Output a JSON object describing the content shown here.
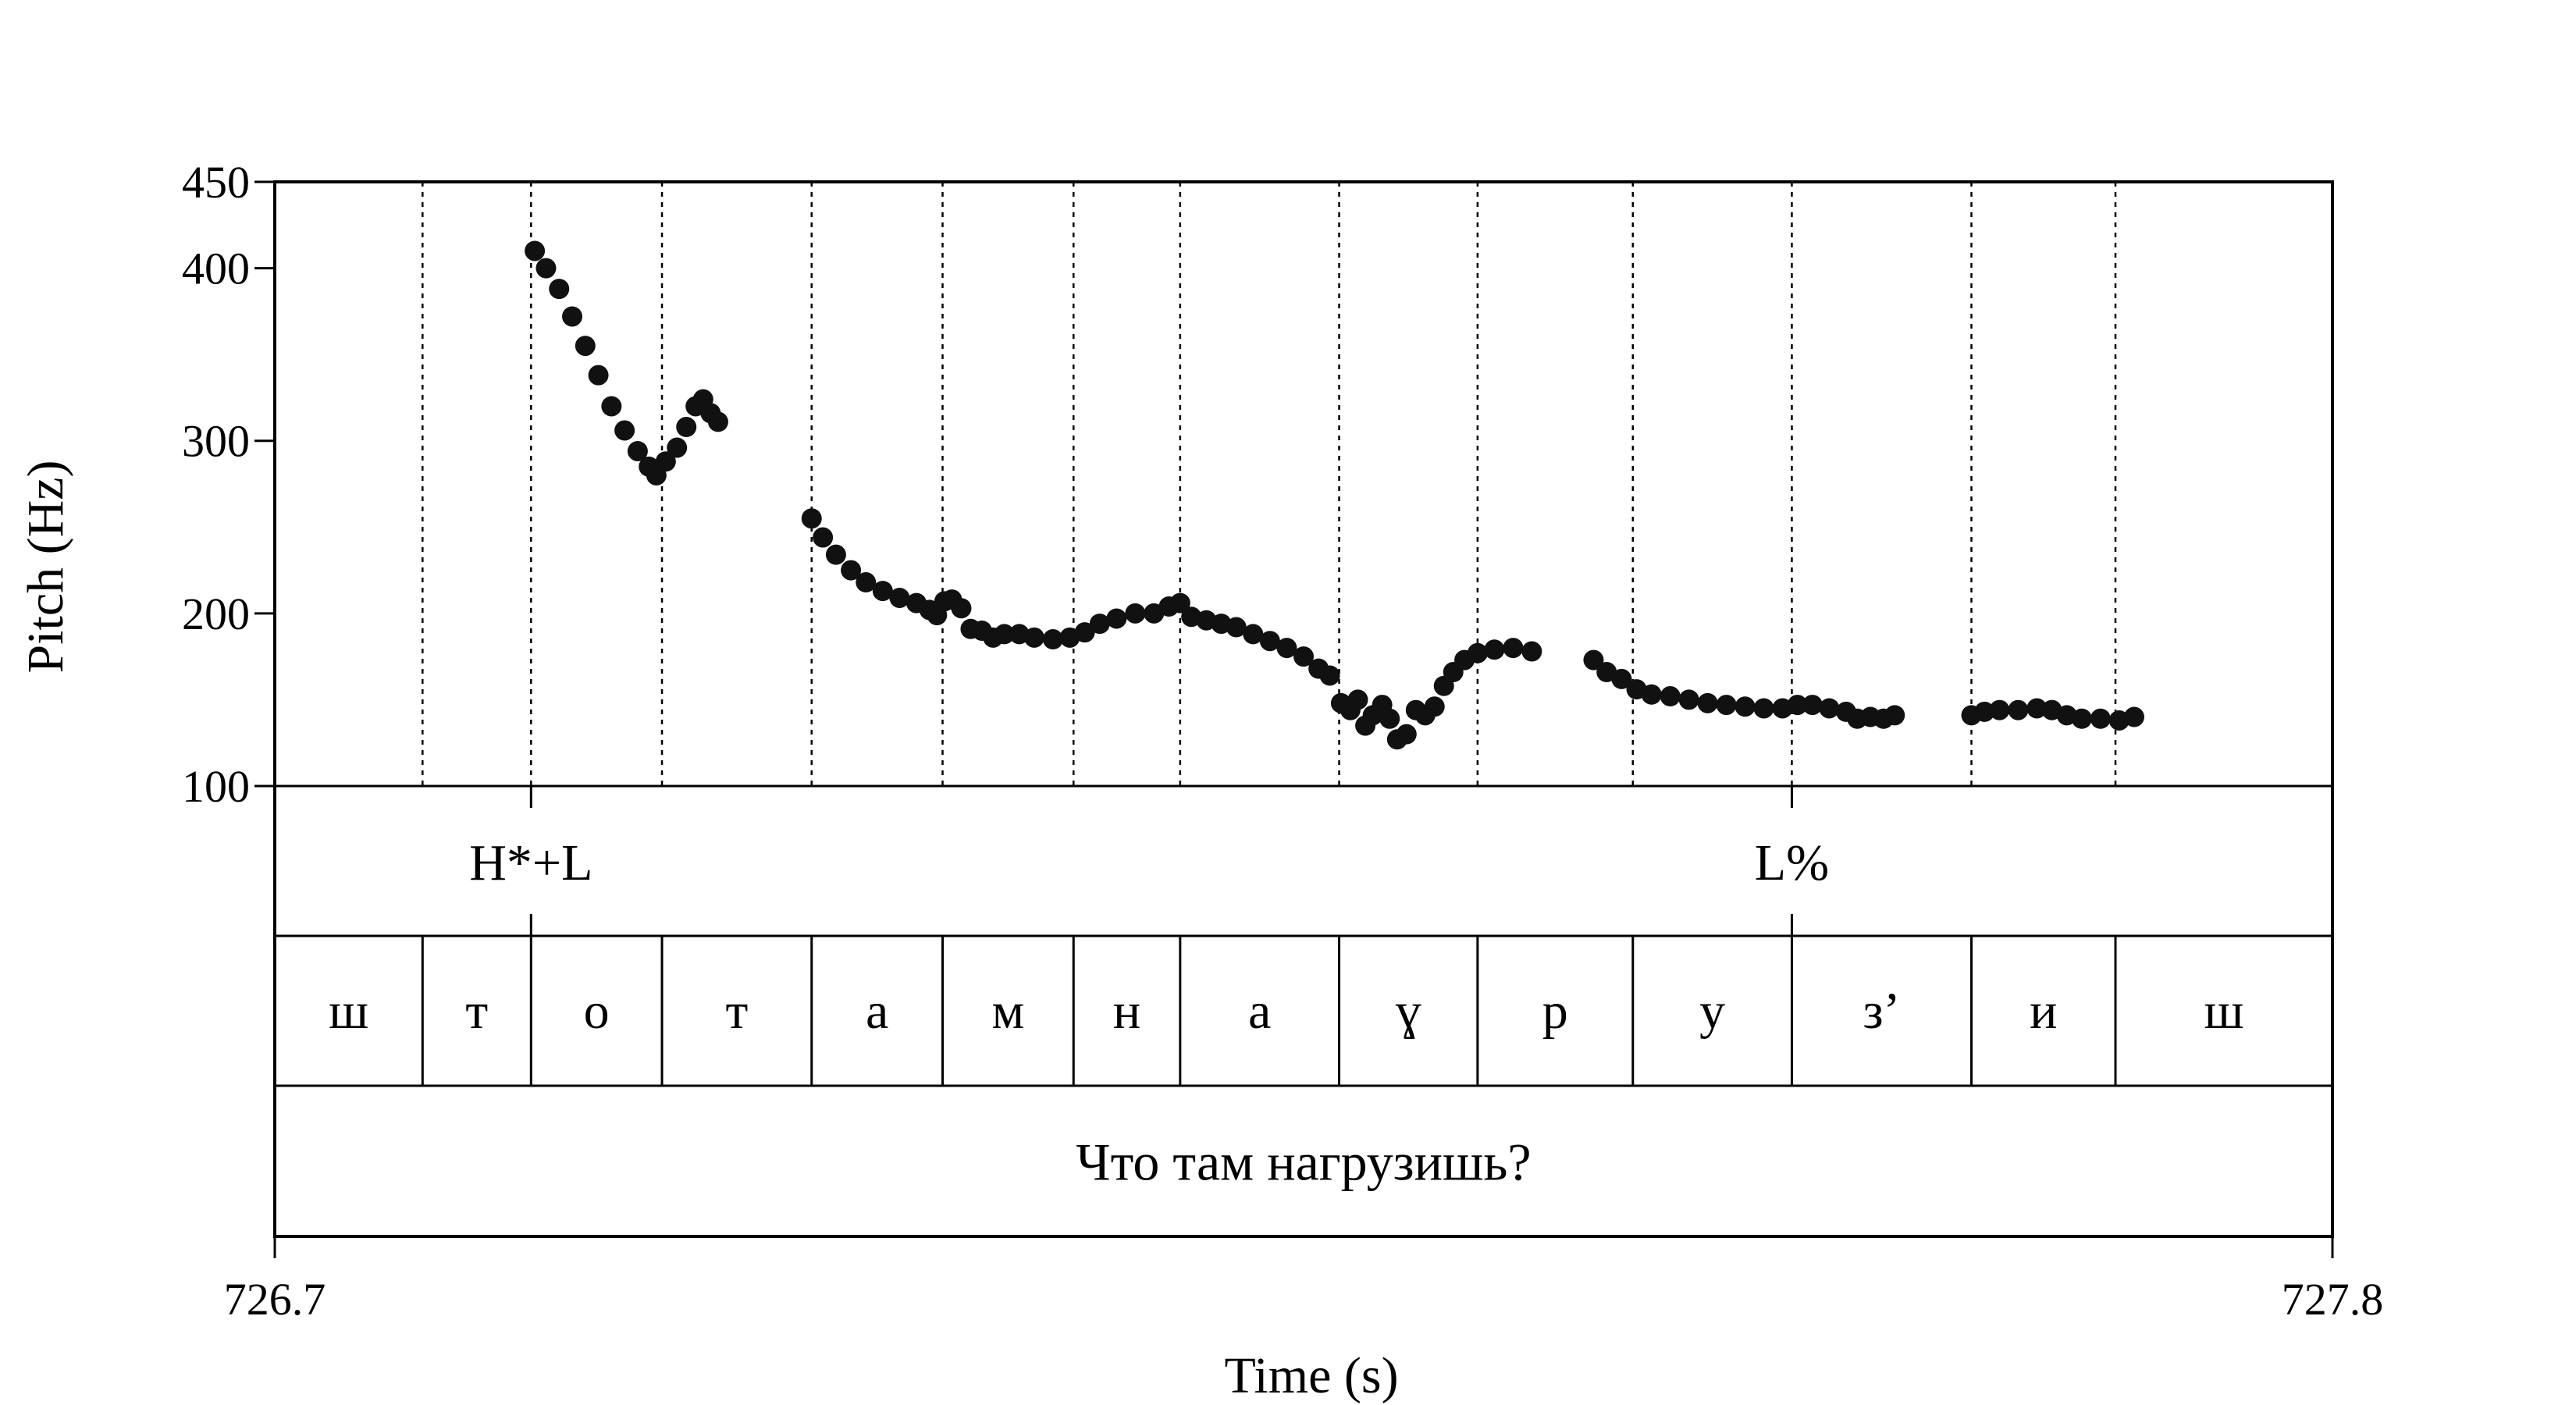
{
  "chart_data": {
    "type": "scatter",
    "ylabel": "Pitch (Hz)",
    "xlabel": "Time (s)",
    "xlim": [
      726.7,
      727.8
    ],
    "ylim": [
      100,
      450
    ],
    "yticks": [
      100,
      200,
      300,
      400,
      450
    ],
    "ytick_labels": [
      "100",
      "200",
      "300",
      "400",
      "450"
    ],
    "xticks": [
      726.7,
      727.8
    ],
    "xtick_labels": [
      "726.7",
      "727.8"
    ],
    "boundaries": [
      726.7,
      726.779,
      726.837,
      726.907,
      726.987,
      727.057,
      727.127,
      727.184,
      727.269,
      727.343,
      727.426,
      727.511,
      727.607,
      727.684,
      727.8
    ],
    "tones": [
      {
        "label": "H*+L",
        "time": 726.837
      },
      {
        "label": "L%",
        "time": 727.511
      }
    ],
    "segments": [
      "ш",
      "т",
      "о",
      "т",
      "а",
      "м",
      "н",
      "а",
      "ɣ",
      "р",
      "у",
      "з’",
      "и",
      "ш"
    ],
    "sentence": "Что там нагрузишь?",
    "series": [
      {
        "points": [
          [
            726.839,
            410
          ],
          [
            726.845,
            400
          ],
          [
            726.852,
            388
          ],
          [
            726.859,
            372
          ],
          [
            726.866,
            355
          ],
          [
            726.873,
            338
          ],
          [
            726.88,
            320
          ],
          [
            726.887,
            306
          ],
          [
            726.894,
            294
          ],
          [
            726.9,
            285
          ],
          [
            726.904,
            280
          ],
          [
            726.909,
            288
          ],
          [
            726.915,
            296
          ],
          [
            726.92,
            308
          ],
          [
            726.925,
            320
          ],
          [
            726.929,
            324
          ],
          [
            726.933,
            316
          ],
          [
            726.937,
            311
          ],
          [
            726.987,
            255
          ],
          [
            726.993,
            244
          ],
          [
            727.0,
            234
          ],
          [
            727.008,
            225
          ],
          [
            727.016,
            218
          ],
          [
            727.025,
            213
          ],
          [
            727.034,
            209
          ],
          [
            727.043,
            206
          ],
          [
            727.05,
            202
          ],
          [
            727.054,
            199
          ],
          [
            727.058,
            207
          ],
          [
            727.062,
            208
          ],
          [
            727.067,
            203
          ],
          [
            727.072,
            191
          ],
          [
            727.078,
            190
          ],
          [
            727.084,
            186
          ],
          [
            727.09,
            188
          ],
          [
            727.098,
            188
          ],
          [
            727.106,
            186
          ],
          [
            727.116,
            185
          ],
          [
            727.125,
            186
          ],
          [
            727.133,
            189
          ],
          [
            727.141,
            194
          ],
          [
            727.15,
            197
          ],
          [
            727.16,
            200
          ],
          [
            727.17,
            200
          ],
          [
            727.178,
            204
          ],
          [
            727.184,
            206
          ],
          [
            727.19,
            198
          ],
          [
            727.198,
            196
          ],
          [
            727.206,
            194
          ],
          [
            727.214,
            192
          ],
          [
            727.223,
            188
          ],
          [
            727.232,
            184
          ],
          [
            727.241,
            180
          ],
          [
            727.25,
            175
          ],
          [
            727.258,
            168
          ],
          [
            727.264,
            164
          ],
          [
            727.27,
            148
          ],
          [
            727.275,
            144
          ],
          [
            727.279,
            150
          ],
          [
            727.283,
            135
          ],
          [
            727.287,
            141
          ],
          [
            727.292,
            147
          ],
          [
            727.296,
            139
          ],
          [
            727.3,
            127
          ],
          [
            727.305,
            130
          ],
          [
            727.31,
            144
          ],
          [
            727.315,
            141
          ],
          [
            727.32,
            146
          ],
          [
            727.325,
            158
          ],
          [
            727.33,
            166
          ],
          [
            727.336,
            173
          ],
          [
            727.343,
            177
          ],
          [
            727.352,
            179
          ],
          [
            727.362,
            180
          ],
          [
            727.372,
            178
          ],
          [
            727.405,
            173
          ],
          [
            727.412,
            166
          ],
          [
            727.42,
            162
          ],
          [
            727.428,
            156
          ],
          [
            727.436,
            153
          ],
          [
            727.446,
            152
          ],
          [
            727.456,
            150
          ],
          [
            727.466,
            148
          ],
          [
            727.476,
            147
          ],
          [
            727.486,
            146
          ],
          [
            727.496,
            145
          ],
          [
            727.506,
            145
          ],
          [
            727.514,
            147
          ],
          [
            727.522,
            147
          ],
          [
            727.531,
            145
          ],
          [
            727.54,
            143
          ],
          [
            727.546,
            139
          ],
          [
            727.553,
            140
          ],
          [
            727.56,
            139
          ],
          [
            727.566,
            141
          ],
          [
            727.607,
            141
          ],
          [
            727.614,
            143
          ],
          [
            727.622,
            144
          ],
          [
            727.632,
            144
          ],
          [
            727.642,
            145
          ],
          [
            727.65,
            144
          ],
          [
            727.658,
            141
          ],
          [
            727.666,
            139
          ],
          [
            727.676,
            139
          ],
          [
            727.686,
            138
          ],
          [
            727.694,
            140
          ]
        ]
      }
    ]
  }
}
